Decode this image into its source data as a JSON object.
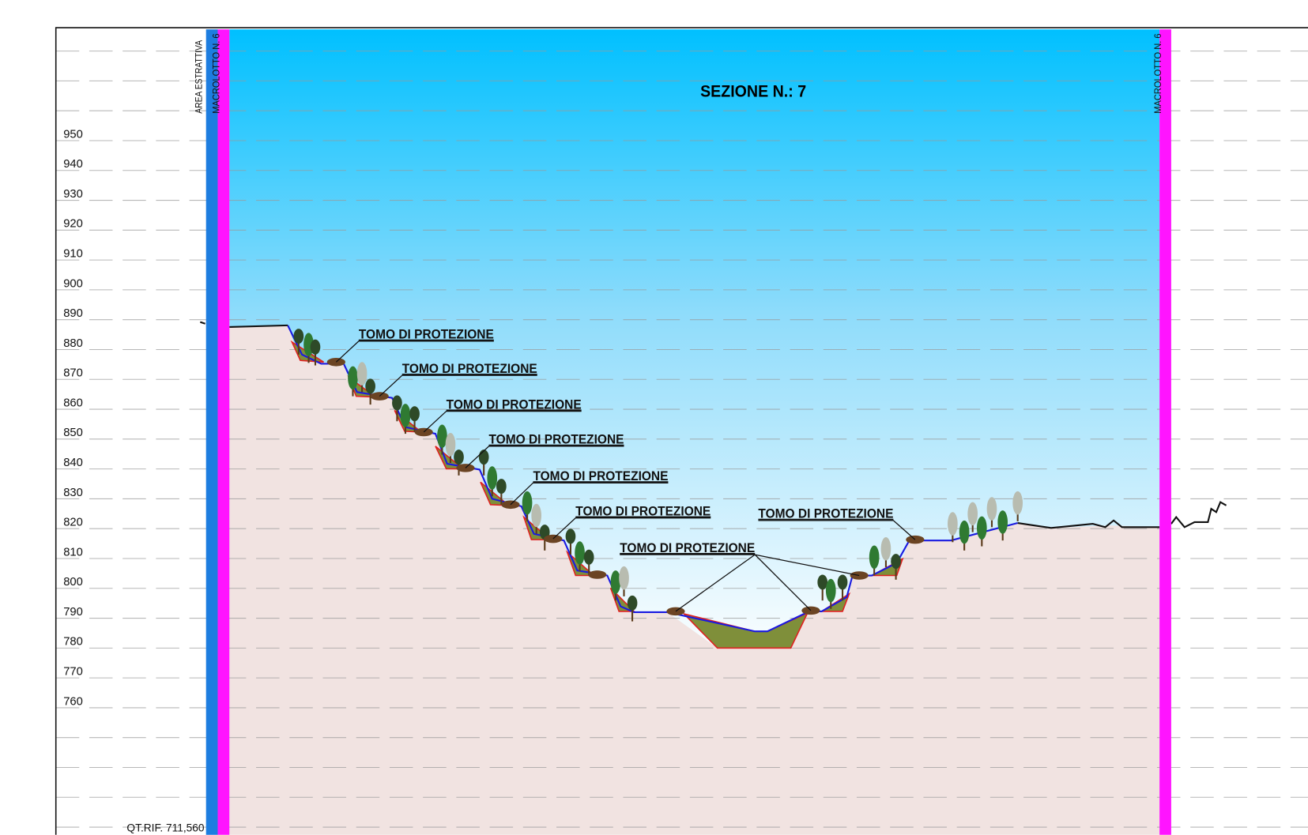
{
  "title": "SEZIONE N.: 7",
  "left_labels": [
    "AREA ESTRATTIVA",
    "MACROLOTTO N. 6"
  ],
  "right_label": "MACROLOTTO N. 6",
  "elevations": [
    950,
    940,
    930,
    920,
    910,
    900,
    890,
    880,
    870,
    860,
    850,
    840,
    830,
    820,
    810,
    800,
    790,
    780,
    770,
    760
  ],
  "reference": "QT.RIF. 711,560",
  "annotations": [
    "TOMO DI PROTEZIONE",
    "TOMO DI PROTEZIONE",
    "TOMO DI PROTEZIONE",
    "TOMO DI PROTEZIONE",
    "TOMO DI PROTEZIONE",
    "TOMO DI PROTEZIONE",
    "TOMO DI PROTEZIONE",
    "TOMO DI PROTEZIONE"
  ]
}
